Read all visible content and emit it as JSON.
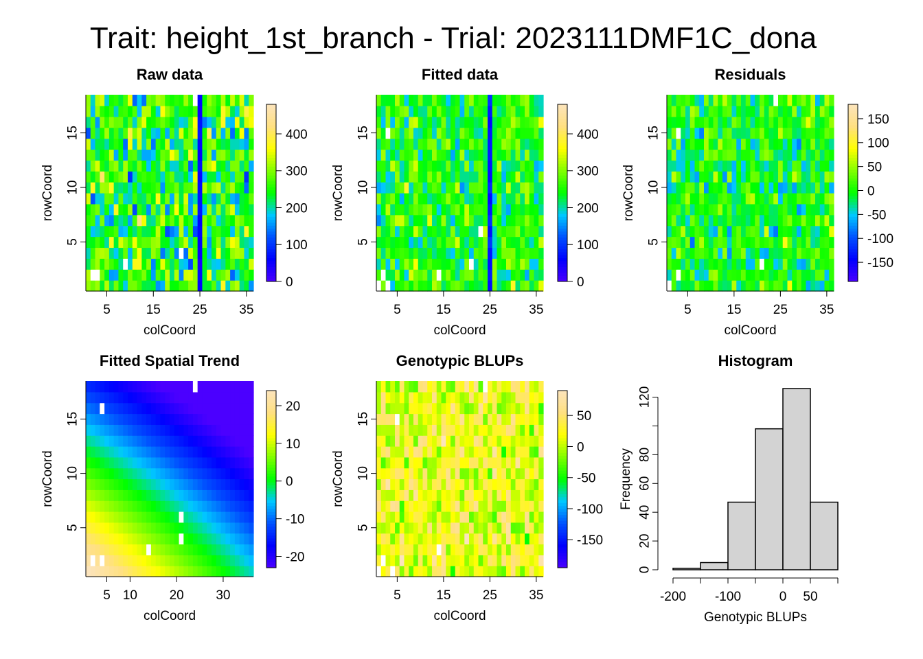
{
  "title": "Trait: height_1st_branch - Trial: 2023111DMF1C_dona",
  "colors": {
    "palette": [
      "#4b00ff",
      "#0000ff",
      "#0050ff",
      "#00c8ff",
      "#00ff00",
      "#80ff00",
      "#ffff00",
      "#ffe080",
      "#fce4bc"
    ],
    "histogram_fill": "#d3d3d3",
    "missing": "#ffffff"
  },
  "chart_data": [
    {
      "type": "heatmap",
      "title": "Raw data",
      "xlabel": "colCoord",
      "ylabel": "rowCoord",
      "x_range": [
        1,
        36
      ],
      "y_range": [
        1,
        18
      ],
      "x_ticks": [
        5,
        15,
        25,
        35
      ],
      "y_ticks": [
        5,
        10,
        15
      ],
      "value_range": [
        0,
        480
      ],
      "colorbar_ticks": [
        0,
        100,
        200,
        300,
        400
      ],
      "notes": "field grid of per-plot values; column 25 markedly low",
      "low_column": 25,
      "low_column_value": 40,
      "mean": 250,
      "spread": 110
    },
    {
      "type": "heatmap",
      "title": "Fitted data",
      "xlabel": "colCoord",
      "ylabel": "rowCoord",
      "x_range": [
        1,
        36
      ],
      "y_range": [
        1,
        18
      ],
      "x_ticks": [
        5,
        15,
        25,
        35
      ],
      "y_ticks": [
        5,
        10,
        15
      ],
      "value_range": [
        0,
        480
      ],
      "colorbar_ticks": [
        0,
        100,
        200,
        300,
        400
      ],
      "low_column": 25,
      "low_column_value": 60,
      "mean": 250,
      "spread": 80
    },
    {
      "type": "heatmap",
      "title": "Residuals",
      "xlabel": "colCoord",
      "ylabel": "rowCoord",
      "x_range": [
        1,
        36
      ],
      "y_range": [
        1,
        18
      ],
      "x_ticks": [
        5,
        15,
        25,
        35
      ],
      "y_ticks": [
        5,
        10,
        15
      ],
      "value_range": [
        -190,
        180
      ],
      "colorbar_ticks": [
        -150,
        -100,
        -50,
        0,
        50,
        100,
        150
      ],
      "mean": 0,
      "spread": 60
    },
    {
      "type": "heatmap",
      "title": "Fitted Spatial Trend",
      "xlabel": "colCoord",
      "ylabel": "rowCoord",
      "x_range": [
        1,
        36
      ],
      "y_range": [
        1,
        18
      ],
      "x_ticks": [
        5,
        10,
        20,
        30
      ],
      "y_ticks": [
        5,
        10,
        15
      ],
      "value_range": [
        -23,
        24
      ],
      "colorbar_ticks": [
        -20,
        -10,
        0,
        10,
        20
      ],
      "trend": "decreasing from lower-left (about 23) to upper-right (about -23)"
    },
    {
      "type": "heatmap",
      "title": "Genotypic BLUPs",
      "xlabel": "colCoord",
      "ylabel": "rowCoord",
      "x_range": [
        1,
        36
      ],
      "y_range": [
        1,
        18
      ],
      "x_ticks": [
        5,
        15,
        25,
        35
      ],
      "y_ticks": [
        5,
        10,
        15
      ],
      "value_range": [
        -195,
        90
      ],
      "colorbar_ticks": [
        -150,
        -100,
        -50,
        0,
        50
      ],
      "mean": 20,
      "spread": 50
    },
    {
      "type": "bar",
      "title": "Histogram",
      "xlabel": "Genotypic BLUPs",
      "ylabel": "Frequency",
      "bin_edges": [
        -200,
        -150,
        -100,
        -50,
        0,
        50,
        100
      ],
      "counts": [
        1,
        5,
        47,
        98,
        126,
        47
      ],
      "x_ticks": [
        -200,
        -100,
        0,
        50
      ],
      "y_ticks": [
        0,
        20,
        40,
        60,
        80,
        120
      ],
      "ylim": [
        0,
        126
      ]
    }
  ]
}
